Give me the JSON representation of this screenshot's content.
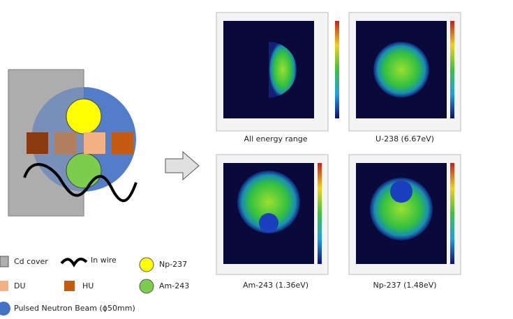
{
  "legend": [
    {
      "label": "Cd cover"
    },
    {
      "label": "In wire"
    },
    {
      "label": "Np-237"
    },
    {
      "label": "DU"
    },
    {
      "label": "HU"
    },
    {
      "label": "Am-243"
    },
    {
      "label": "Pulsed Neutron Beam (ϕ50mm)"
    }
  ],
  "panels": [
    {
      "caption": "All energy range"
    },
    {
      "caption": "U-238 (6.67eV)"
    },
    {
      "caption": "Am-243 (1.36eV)"
    },
    {
      "caption": "Np-237 (1.48eV)"
    }
  ]
}
